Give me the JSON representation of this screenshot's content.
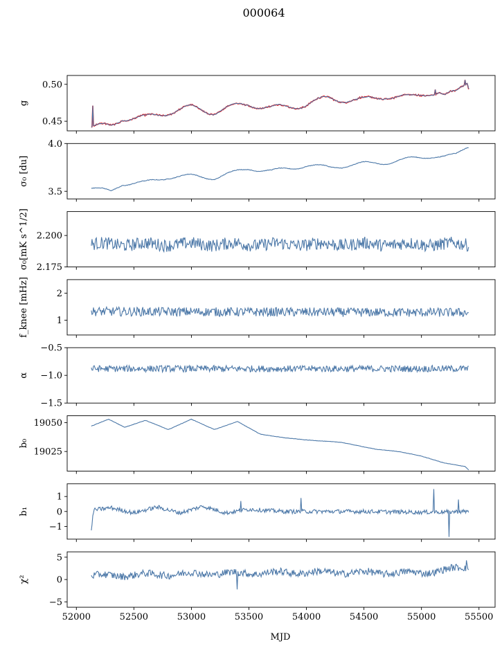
{
  "figure": {
    "title": "000064",
    "xlabel": "MJD"
  },
  "chart_data": {
    "type": "line",
    "title": "000064",
    "xlabel": "MJD",
    "shared_x": true,
    "x_range": [
      52130,
      55410
    ],
    "xlim": [
      51920,
      55640
    ],
    "xticks": [
      52000,
      52500,
      53000,
      53500,
      54000,
      54500,
      55000,
      55500
    ],
    "xtick_labels": [
      "52000",
      "52500",
      "53000",
      "53500",
      "54000",
      "54500",
      "55000",
      "55500"
    ],
    "colors": {
      "model": "#4c78a8",
      "observed": "#ff0000"
    },
    "panels": [
      {
        "id": "g",
        "ylabel": "g",
        "ylim": [
          0.437,
          0.512
        ],
        "yticks": [
          0.45,
          0.5
        ],
        "ytick_labels": [
          "0.45",
          "0.50"
        ],
        "keypoints": [
          [
            52130,
            0.442
          ],
          [
            52300,
            0.443
          ],
          [
            52400,
            0.455
          ],
          [
            52600,
            0.454
          ],
          [
            52800,
            0.463
          ],
          [
            53000,
            0.468
          ],
          [
            53200,
            0.463
          ],
          [
            53500,
            0.474
          ],
          [
            53700,
            0.467
          ],
          [
            54000,
            0.473
          ],
          [
            54200,
            0.481
          ],
          [
            54500,
            0.478
          ],
          [
            54700,
            0.485
          ],
          [
            54900,
            0.481
          ],
          [
            55050,
            0.489
          ],
          [
            55150,
            0.49
          ],
          [
            55200,
            0.484
          ],
          [
            55300,
            0.488
          ],
          [
            55400,
            0.504
          ],
          [
            55410,
            0.497
          ]
        ],
        "wave": {
          "amp": 0.0045,
          "period": 380,
          "noise": 0.0005
        },
        "overlay_series": "observed",
        "spikes": [
          [
            52140,
            0.471
          ],
          [
            54440,
            0.479
          ],
          [
            55120,
            0.493
          ],
          [
            55380,
            0.506
          ]
        ]
      },
      {
        "id": "sigma0",
        "ylabel": "σ₀ [du]",
        "ylim": [
          3.42,
          4.0
        ],
        "yticks": [
          3.5,
          4.0
        ],
        "ytick_labels": [
          "3.5",
          "4.0"
        ],
        "keypoints": [
          [
            52130,
            3.53
          ],
          [
            52300,
            3.5
          ],
          [
            52400,
            3.58
          ],
          [
            52600,
            3.59
          ],
          [
            52800,
            3.65
          ],
          [
            53000,
            3.66
          ],
          [
            53200,
            3.64
          ],
          [
            53500,
            3.74
          ],
          [
            53700,
            3.71
          ],
          [
            54000,
            3.77
          ],
          [
            54200,
            3.75
          ],
          [
            54500,
            3.79
          ],
          [
            54700,
            3.8
          ],
          [
            54900,
            3.84
          ],
          [
            55100,
            3.87
          ],
          [
            55200,
            3.86
          ],
          [
            55300,
            3.88
          ],
          [
            55400,
            3.97
          ]
        ],
        "wave": {
          "amp": 0.02,
          "period": 380,
          "noise": 0.003
        }
      },
      {
        "id": "sigma0_flux",
        "ylabel": "σ₀[mK s^1/2]",
        "ylim": [
          2.175,
          2.219
        ],
        "yticks": [
          2.175,
          2.2
        ],
        "ytick_labels": [
          "2.175",
          "2.200"
        ],
        "keypoints": [
          [
            52130,
            2.193
          ],
          [
            55410,
            2.193
          ]
        ],
        "wave": {
          "amp": 0.001,
          "period": 380,
          "noise": 0.005
        }
      },
      {
        "id": "fknee",
        "ylabel": "f_knee [mHz]",
        "ylim": [
          0.45,
          2.5
        ],
        "yticks": [
          1,
          2
        ],
        "ytick_labels": [
          "1",
          "2"
        ],
        "keypoints": [
          [
            52130,
            1.32
          ],
          [
            55410,
            1.28
          ]
        ],
        "wave": {
          "amp": 0.0,
          "period": 380,
          "noise": 0.17
        }
      },
      {
        "id": "alpha",
        "ylabel": "α",
        "ylim": [
          -1.5,
          -0.5
        ],
        "yticks": [
          -1.5,
          -1.0,
          -0.5
        ],
        "ytick_labels": [
          "−1.5",
          "−1.0",
          "−0.5"
        ],
        "keypoints": [
          [
            52130,
            -0.88
          ],
          [
            55410,
            -0.88
          ]
        ],
        "wave": {
          "amp": 0.0,
          "period": 380,
          "noise": 0.06
        }
      },
      {
        "id": "b0",
        "ylabel": "b₀",
        "ylim": [
          19008,
          19056
        ],
        "yticks": [
          19025,
          19050
        ],
        "ytick_labels": [
          "19025",
          "19050"
        ],
        "keypoints": [
          [
            52130,
            19047
          ],
          [
            52280,
            19053
          ],
          [
            52420,
            19046
          ],
          [
            52600,
            19052
          ],
          [
            52800,
            19044
          ],
          [
            53000,
            19053
          ],
          [
            53200,
            19044
          ],
          [
            53400,
            19051
          ],
          [
            53600,
            19040
          ],
          [
            53800,
            19037
          ],
          [
            54000,
            19035
          ],
          [
            54300,
            19033
          ],
          [
            54600,
            19027
          ],
          [
            54800,
            19025
          ],
          [
            55000,
            19021
          ],
          [
            55200,
            19015
          ],
          [
            55380,
            19012
          ],
          [
            55410,
            19009
          ]
        ],
        "wave": {
          "amp": 0.0,
          "period": 380,
          "noise": 0.15
        }
      },
      {
        "id": "b1",
        "ylabel": "b₁",
        "ylim": [
          -1.85,
          1.85
        ],
        "yticks": [
          -1,
          0,
          1
        ],
        "ytick_labels": [
          "−1",
          "0",
          "1"
        ],
        "keypoints": [
          [
            52130,
            -1.3
          ],
          [
            52150,
            0.1
          ],
          [
            52300,
            0.25
          ],
          [
            52500,
            -0.1
          ],
          [
            52700,
            0.3
          ],
          [
            52900,
            -0.1
          ],
          [
            53100,
            0.35
          ],
          [
            53300,
            -0.1
          ],
          [
            53500,
            0.15
          ],
          [
            53800,
            0.0
          ],
          [
            54500,
            0.0
          ],
          [
            55000,
            -0.05
          ],
          [
            55410,
            0.0
          ]
        ],
        "wave": {
          "amp": 0.0,
          "period": 380,
          "noise": 0.14
        },
        "spikes": [
          [
            53430,
            0.7
          ],
          [
            53950,
            0.9
          ],
          [
            55110,
            1.5
          ],
          [
            55240,
            -1.7
          ],
          [
            55320,
            0.8
          ]
        ]
      },
      {
        "id": "chi2",
        "ylabel": "χ²",
        "ylim": [
          -6.2,
          6.2
        ],
        "yticks": [
          -5,
          0,
          5
        ],
        "ytick_labels": [
          "−5",
          "0",
          "5"
        ],
        "keypoints": [
          [
            52130,
            0.8
          ],
          [
            53000,
            1.3
          ],
          [
            54000,
            1.6
          ],
          [
            55000,
            1.5
          ],
          [
            55410,
            2.8
          ]
        ],
        "wave": {
          "amp": 0.3,
          "period": 380,
          "noise": 0.8
        },
        "spikes": [
          [
            53400,
            -2.2
          ],
          [
            55390,
            4.3
          ]
        ]
      }
    ]
  }
}
